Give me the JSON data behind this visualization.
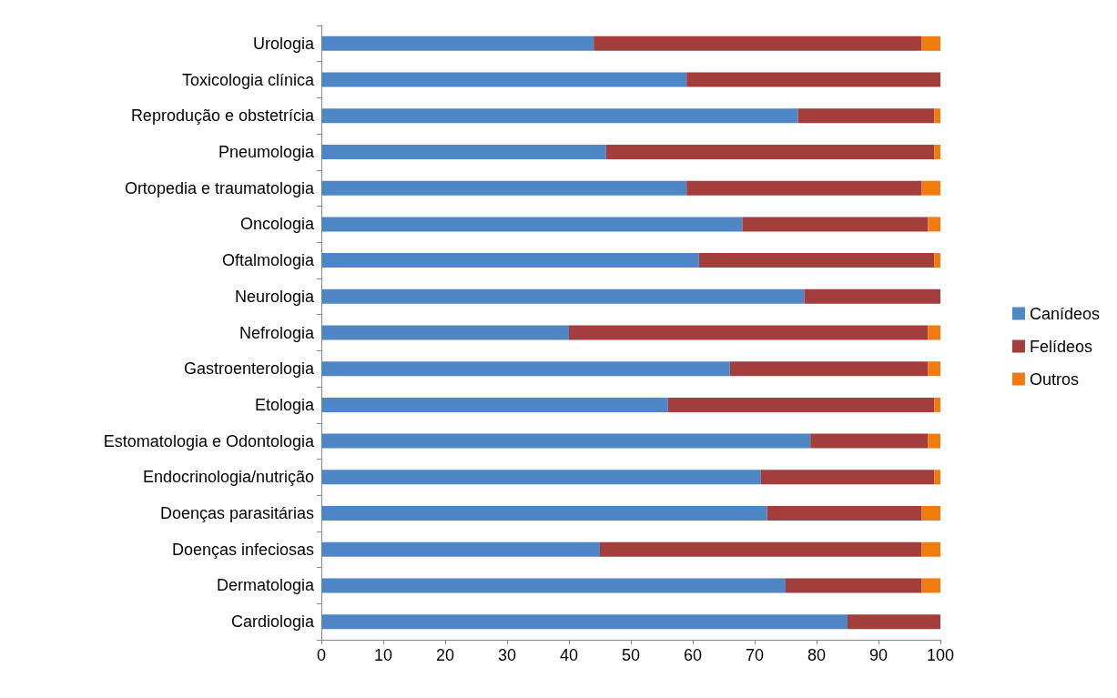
{
  "chart_data": {
    "type": "bar",
    "orientation": "horizontal",
    "stacked": true,
    "categories": [
      "Urologia",
      "Toxicologia clínica",
      "Reprodução e obstetrícia",
      "Pneumologia",
      "Ortopedia e traumatologia",
      "Oncologia",
      "Oftalmologia",
      "Neurologia",
      "Nefrologia",
      "Gastroenterologia",
      "Etologia",
      "Estomatologia e Odontologia",
      "Endocrinologia/nutrição",
      "Doenças parasitárias",
      "Doenças infeciosas",
      "Dermatologia",
      "Cardiologia"
    ],
    "series": [
      {
        "name": "Canídeos",
        "color": "#4f86c6",
        "values": [
          44,
          59,
          77,
          46,
          59,
          68,
          61,
          78,
          40,
          66,
          56,
          79,
          71,
          72,
          45,
          75,
          85
        ]
      },
      {
        "name": "Felídeos",
        "color": "#a33e3c",
        "values": [
          53,
          41,
          22,
          53,
          38,
          30,
          38,
          22,
          58,
          32,
          43,
          19,
          28,
          25,
          52,
          22,
          15
        ]
      },
      {
        "name": "Outros",
        "color": "#f07c10",
        "values": [
          3,
          0,
          1,
          1,
          3,
          2,
          1,
          0,
          2,
          2,
          1,
          2,
          1,
          3,
          3,
          3,
          0
        ]
      }
    ],
    "xlim": [
      0,
      100
    ],
    "xticks": [
      0,
      10,
      20,
      30,
      40,
      50,
      60,
      70,
      80,
      90,
      100
    ],
    "grid": false,
    "legend": "right"
  }
}
